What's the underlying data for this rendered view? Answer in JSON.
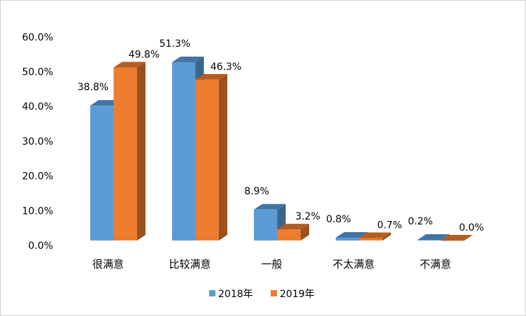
{
  "chart_data": {
    "type": "bar",
    "style": "3d-clustered-column",
    "categories": [
      "很满意",
      "比较满意",
      "一般",
      "不太满意",
      "不满意"
    ],
    "series": [
      {
        "name": "2018年",
        "values": [
          38.8,
          51.3,
          8.9,
          0.8,
          0.2
        ],
        "labels": [
          "38.8%",
          "51.3%",
          "8.9%",
          "0.8%",
          "0.2%"
        ],
        "color": "#5b9bd5"
      },
      {
        "name": "2019年",
        "values": [
          49.8,
          46.3,
          3.2,
          0.7,
          0.0
        ],
        "labels": [
          "49.8%",
          "46.3%",
          "3.2%",
          "0.7%",
          "0.0%"
        ],
        "color": "#ed7d31"
      }
    ],
    "ylim": [
      0,
      60
    ],
    "yticks": [
      "0.0%",
      "10.0%",
      "20.0%",
      "30.0%",
      "40.0%",
      "50.0%",
      "60.0%"
    ],
    "grid": false,
    "legend": "bottom"
  }
}
